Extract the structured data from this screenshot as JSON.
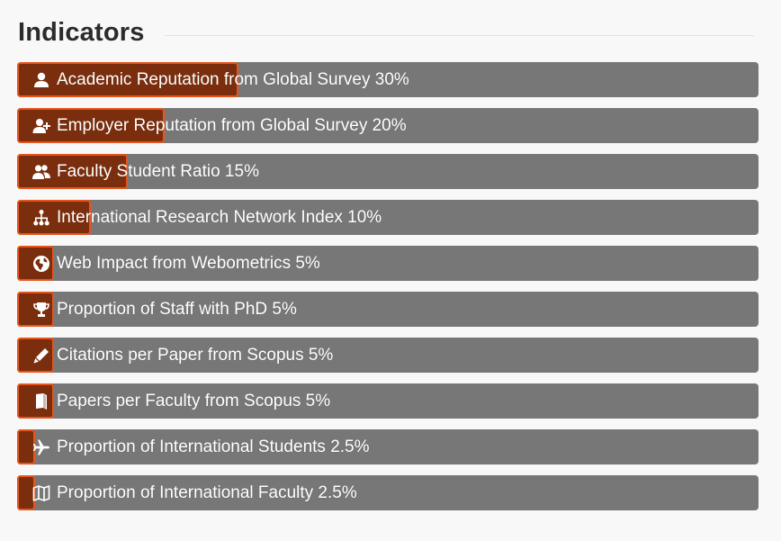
{
  "page": {
    "title": "Indicators"
  },
  "indicators": [
    {
      "label": "Academic Reputation from Global Survey 30%",
      "weight": 30,
      "icon": "user-icon"
    },
    {
      "label": "Employer Reputation from Global Survey 20%",
      "weight": 20,
      "icon": "user-plus-icon"
    },
    {
      "label": "Faculty Student Ratio 15%",
      "weight": 15,
      "icon": "users-icon"
    },
    {
      "label": "International Research Network Index 10%",
      "weight": 10,
      "icon": "network-icon"
    },
    {
      "label": "Web Impact from Webometrics 5%",
      "weight": 5,
      "icon": "globe-icon"
    },
    {
      "label": "Proportion of Staff with PhD 5%",
      "weight": 5,
      "icon": "trophy-icon"
    },
    {
      "label": "Citations per Paper from Scopus 5%",
      "weight": 5,
      "icon": "pencil-icon"
    },
    {
      "label": "Papers per Faculty from Scopus 5%",
      "weight": 5,
      "icon": "book-icon"
    },
    {
      "label": "Proportion of International Students 2.5%",
      "weight": 2.5,
      "icon": "plane-icon"
    },
    {
      "label": "Proportion of International Faculty 2.5%",
      "weight": 2.5,
      "icon": "map-icon"
    }
  ],
  "colors": {
    "bar": "#777777",
    "fill": "#7a2e0d",
    "fill_border": "#e8541c",
    "text": "#ffffff"
  }
}
